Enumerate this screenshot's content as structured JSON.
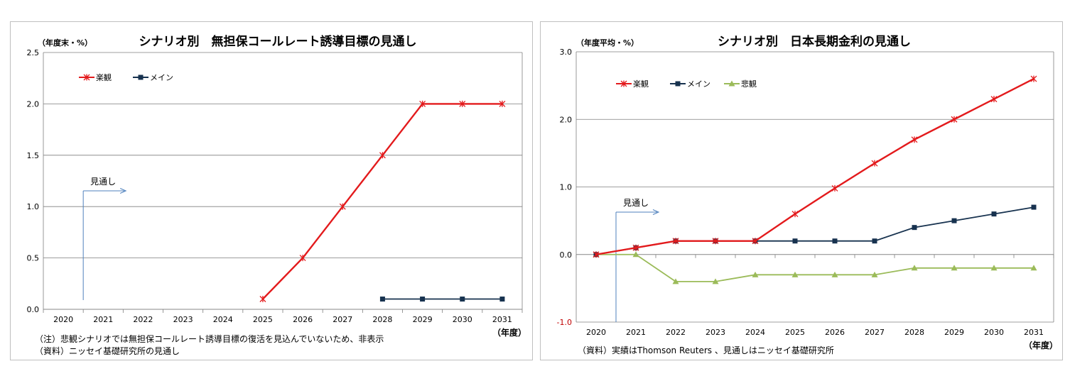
{
  "chart_data": [
    {
      "type": "line",
      "title": "シナリオ別　無担保コールレート誘導目標の見通し",
      "ylabel": "（年度末・%）",
      "xlabel": "（年度）",
      "ylim": [
        0,
        2.5
      ],
      "yticks": [
        "0.0",
        "0.5",
        "1.0",
        "1.5",
        "2.0",
        "2.5"
      ],
      "categories": [
        "2020",
        "2021",
        "2022",
        "2023",
        "2024",
        "2025",
        "2026",
        "2027",
        "2028",
        "2029",
        "2030",
        "2031"
      ],
      "series": [
        {
          "name": "楽観",
          "color": "#e31a1c",
          "marker": "x",
          "values": [
            null,
            null,
            null,
            null,
            null,
            0.1,
            0.5,
            1.0,
            1.5,
            2.0,
            2.0,
            2.0
          ]
        },
        {
          "name": "メイン",
          "color": "#17324f",
          "marker": "square",
          "values": [
            null,
            null,
            null,
            null,
            null,
            null,
            null,
            null,
            0.1,
            0.1,
            0.1,
            0.1
          ]
        }
      ],
      "annotation": {
        "text": "見通し",
        "category": "2021"
      },
      "notes": [
        "（注）悲観シナリオでは無担保コールレート誘導目標の復活を見込んでいないため、非表示",
        "（資料）ニッセイ基礎研究所の見通し"
      ]
    },
    {
      "type": "line",
      "title": "シナリオ別　日本長期金利の見通し",
      "ylabel": "（年度平均・%）",
      "xlabel": "（年度）",
      "ylim": [
        -1.0,
        3.0
      ],
      "yticks": [
        "-1.0",
        "0.0",
        "1.0",
        "2.0",
        "3.0"
      ],
      "categories": [
        "2020",
        "2021",
        "2022",
        "2023",
        "2024",
        "2025",
        "2026",
        "2027",
        "2028",
        "2029",
        "2030",
        "2031"
      ],
      "series": [
        {
          "name": "楽観",
          "color": "#e31a1c",
          "marker": "x",
          "values": [
            0.0,
            0.1,
            0.2,
            0.2,
            0.2,
            0.6,
            0.98,
            1.35,
            1.7,
            2.0,
            2.3,
            2.6
          ]
        },
        {
          "name": "メイン",
          "color": "#17324f",
          "marker": "square",
          "values": [
            0.0,
            0.1,
            0.2,
            0.2,
            0.2,
            0.2,
            0.2,
            0.2,
            0.4,
            0.5,
            0.6,
            0.7
          ]
        },
        {
          "name": "悲観",
          "color": "#9bbb59",
          "marker": "triangle",
          "values": [
            0.0,
            0.0,
            -0.4,
            -0.4,
            -0.3,
            -0.3,
            -0.3,
            -0.3,
            -0.2,
            -0.2,
            -0.2,
            -0.2
          ]
        }
      ],
      "annotation": {
        "text": "見通し",
        "category": "2021"
      },
      "notes": [
        "（資料）実績はThomson Reuters 、見通しはニッセイ基礎研究所"
      ]
    }
  ]
}
